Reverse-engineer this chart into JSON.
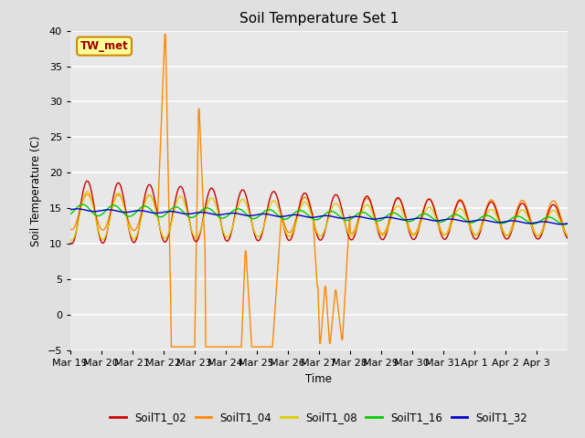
{
  "title": "Soil Temperature Set 1",
  "ylabel": "Soil Temperature (C)",
  "xlabel": "Time",
  "ylim": [
    -5,
    40
  ],
  "background_color": "#e0e0e0",
  "plot_bg_color": "#e8e8e8",
  "grid_color": "#ffffff",
  "annotation_text": "TW_met",
  "annotation_box_color": "#ffff99",
  "annotation_box_edge": "#cc8800",
  "annotation_text_color": "#990000",
  "series": {
    "SoilT1_02": {
      "color": "#cc0000"
    },
    "SoilT1_04": {
      "color": "#ff8800"
    },
    "SoilT1_08": {
      "color": "#ddcc00"
    },
    "SoilT1_16": {
      "color": "#00cc00"
    },
    "SoilT1_32": {
      "color": "#0000cc"
    }
  },
  "xtick_labels": [
    "Mar 19",
    "Mar 20",
    "Mar 21",
    "Mar 22",
    "Mar 23",
    "Mar 24",
    "Mar 25",
    "Mar 26",
    "Mar 27",
    "Mar 28",
    "Mar 29",
    "Mar 30",
    "Mar 31",
    "Apr 1",
    "Apr 2",
    "Apr 3"
  ],
  "num_days": 16,
  "points_per_day": 48
}
